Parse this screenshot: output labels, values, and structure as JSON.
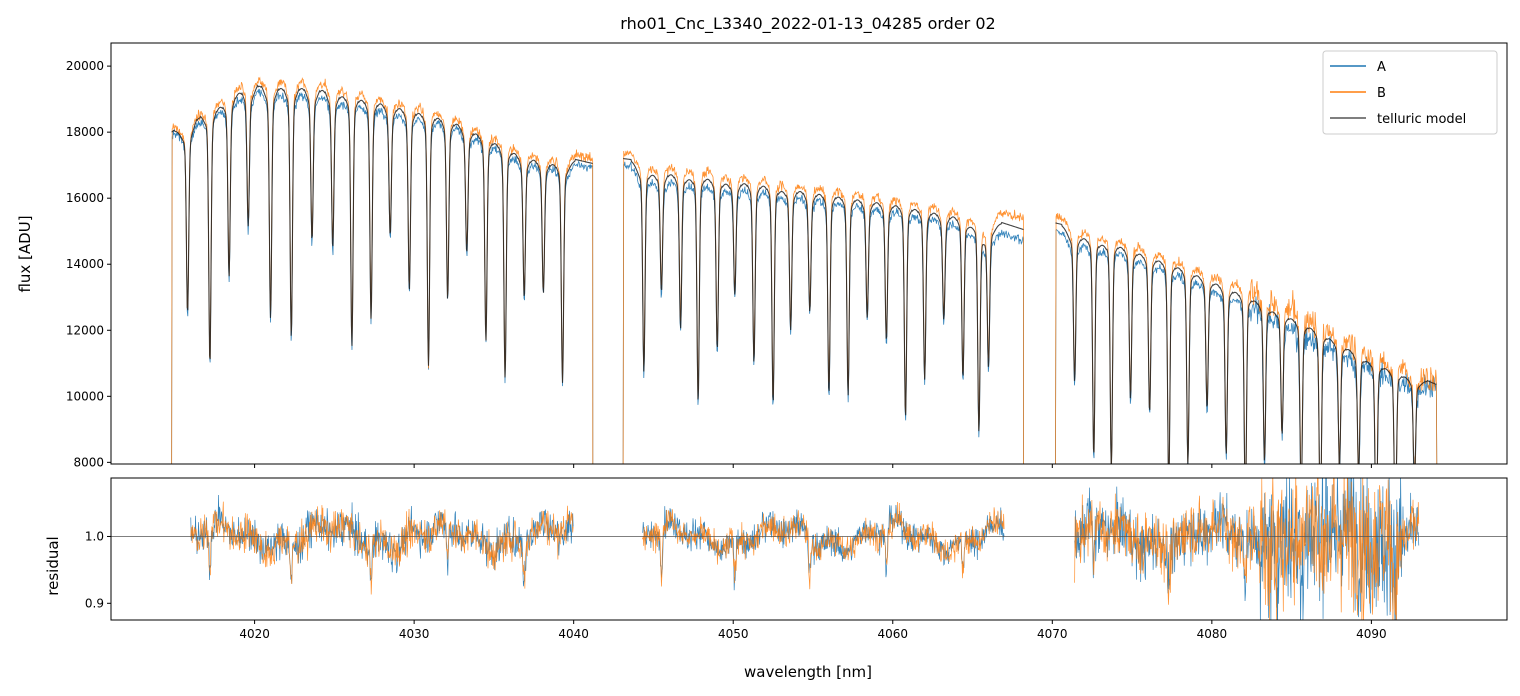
{
  "chart_data": [
    {
      "panel": "spectrum",
      "type": "line",
      "title": "rho01_Cnc_L3340_2022-01-13_04285  order 02",
      "xlabel": "",
      "ylabel": "flux [ADU]",
      "xlim": [
        4011,
        4098.5
      ],
      "ylim": [
        7950,
        20700
      ],
      "xticks": [
        4020,
        4030,
        4040,
        4050,
        4060,
        4070,
        4080,
        4090
      ],
      "yticks": [
        8000,
        10000,
        12000,
        14000,
        16000,
        18000,
        20000
      ],
      "ytick_labels": [
        "8000",
        "10000",
        "12000",
        "14000",
        "16000",
        "18000",
        "20000"
      ],
      "legend_position": "top-right",
      "segments": [
        {
          "start": 4014.8,
          "end": 4041.2,
          "flux_A": [
            17900,
            19400,
            19400,
            19000,
            18500,
            17400,
            16900
          ],
          "flux_B": [
            18100,
            19800,
            19800,
            19400,
            18800,
            17700,
            17200
          ]
        },
        {
          "start": 4043.1,
          "end": 4068.2,
          "flux_A": [
            17000,
            16700,
            16500,
            16200,
            15900,
            15500,
            14700
          ],
          "flux_B": [
            17400,
            17200,
            16900,
            16600,
            16300,
            15900,
            15400
          ]
        },
        {
          "start": 4070.2,
          "end": 4094.1,
          "flux_A": [
            15000,
            14600,
            13900,
            13000,
            12000,
            11000,
            10200
          ],
          "flux_B": [
            15500,
            15000,
            14300,
            13500,
            12600,
            11400,
            10500
          ]
        }
      ],
      "absorption_lines": [
        4015.8,
        4017.2,
        4018.4,
        4019.6,
        4021.0,
        4022.3,
        4023.6,
        4024.9,
        4026.1,
        4027.3,
        4028.5,
        4029.7,
        4030.9,
        4032.1,
        4033.3,
        4034.5,
        4035.7,
        4036.9,
        4038.1,
        4039.3,
        4044.4,
        4045.5,
        4046.7,
        4047.8,
        4049.0,
        4050.1,
        4051.3,
        4052.5,
        4053.6,
        4054.8,
        4056.0,
        4057.2,
        4058.4,
        4059.6,
        4060.8,
        4062.0,
        4063.2,
        4064.4,
        4065.4,
        4066.0,
        4071.4,
        4072.6,
        4073.7,
        4074.9,
        4076.1,
        4077.3,
        4078.5,
        4079.7,
        4080.9,
        4082.1,
        4083.3,
        4084.4,
        4085.6,
        4086.8,
        4088.0,
        4089.2,
        4090.3,
        4091.5,
        4092.7
      ],
      "series": [
        {
          "name": "A",
          "color": "#1f77b4"
        },
        {
          "name": "B",
          "color": "#ff7f0e"
        },
        {
          "name": "telluric model",
          "color": "#555555"
        }
      ]
    },
    {
      "panel": "residual",
      "type": "line",
      "title": "",
      "xlabel": "wavelength [nm]",
      "ylabel": "residual",
      "xlim": [
        4011,
        4098.5
      ],
      "ylim": [
        0.875,
        1.0875
      ],
      "xticks": [
        4020,
        4030,
        4040,
        4050,
        4060,
        4070,
        4080,
        4090
      ],
      "xtick_labels": [
        "4020",
        "4030",
        "4040",
        "4050",
        "4060",
        "4070",
        "4080",
        "4090"
      ],
      "yticks": [
        0.9,
        1.0
      ],
      "ytick_labels": [
        "0.9",
        "1.0"
      ],
      "reference_line": 1.0,
      "segments": [
        {
          "start": 4016.0,
          "end": 4040.0,
          "noise": 0.028
        },
        {
          "start": 4044.3,
          "end": 4067.0,
          "noise": 0.022
        },
        {
          "start": 4071.4,
          "end": 4093.0,
          "noise": 0.045
        }
      ],
      "series": [
        {
          "name": "A",
          "color": "#1f77b4"
        },
        {
          "name": "B",
          "color": "#ff7f0e"
        }
      ]
    }
  ]
}
